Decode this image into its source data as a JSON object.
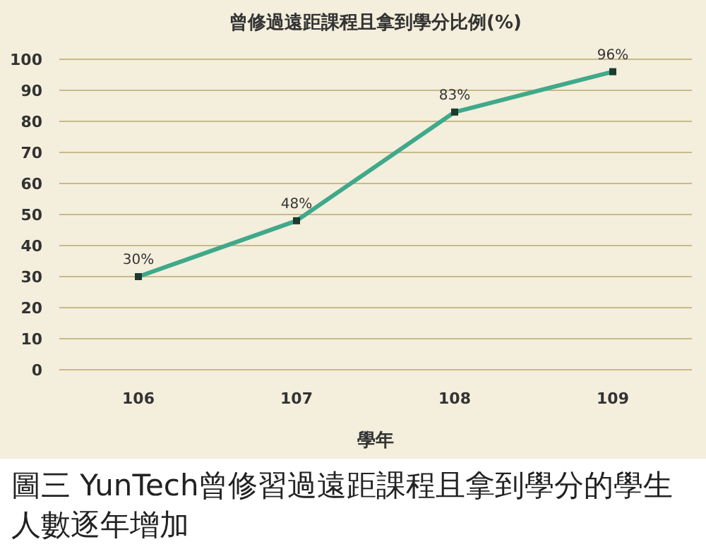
{
  "chart_data": {
    "type": "line",
    "title": "曾修過遠距課程且拿到學分比例(%)",
    "xlabel": "學年",
    "categories": [
      "106",
      "107",
      "108",
      "109"
    ],
    "series": [
      {
        "color": "#3fa98a",
        "values": [
          30,
          48,
          83,
          96
        ],
        "value_labels": [
          "30%",
          "48%",
          "83%",
          "96%"
        ]
      }
    ],
    "ylim": [
      0,
      100
    ],
    "yticks": [
      0,
      10,
      20,
      30,
      40,
      50,
      60,
      70,
      80,
      90,
      100
    ],
    "grid": "y",
    "marker": "square",
    "line_style": "solid",
    "annotations": [
      "圖三  YunTech曾修習過遠距課程且拿到學分的學生人數逐年增加"
    ]
  }
}
